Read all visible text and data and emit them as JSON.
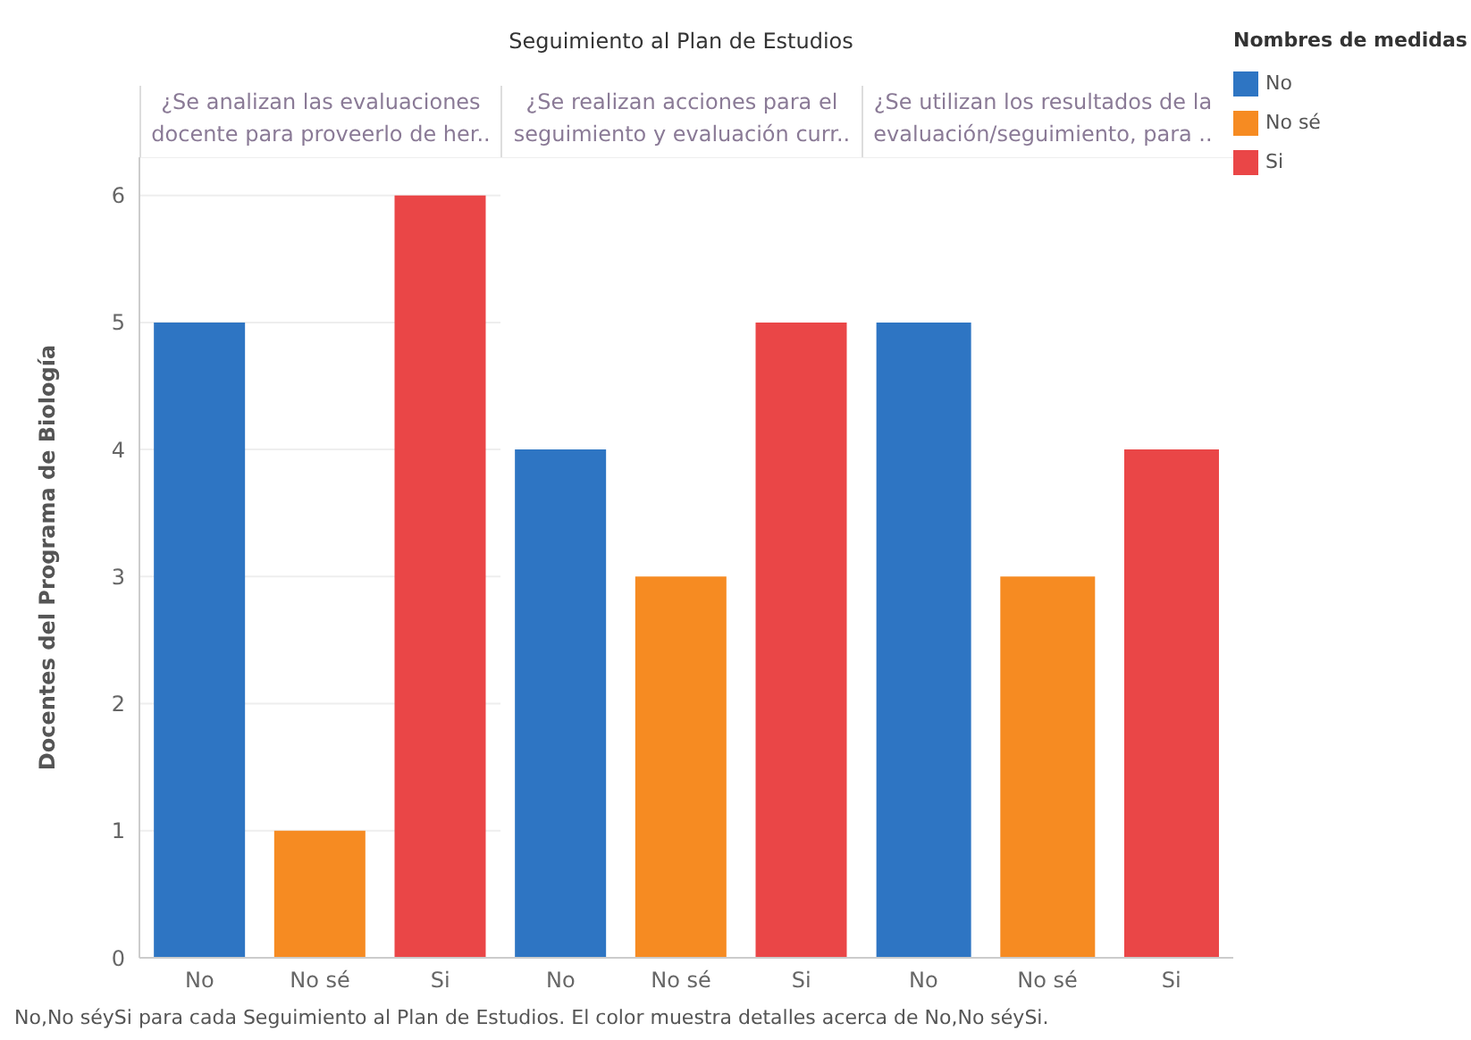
{
  "chart_data": [
    {
      "type": "bar",
      "subtitle": "¿Se analizan las evaluaciones docente para proveerlo de her..",
      "ylabel": "Docentes del Programa de Biología",
      "categories": [
        "No",
        "No sé",
        "Si"
      ],
      "stacked": true,
      "ylim": [
        0,
        6.3
      ],
      "yticks": [
        0,
        1,
        2,
        3,
        4,
        5,
        6
      ],
      "grid": "y",
      "annotations": [
        "No,No séySi para cada Seguimiento al Plan de Estudios. El color muestra detalles acerca de No,No séySi."
      ],
      "series": [
        {
          "color": "#2e75c3",
          "values": [
            5,
            null,
            null
          ]
        },
        {
          "color": "#f68b22",
          "values": [
            null,
            1,
            null
          ]
        },
        {
          "color": "#ea4647",
          "values": [
            null,
            null,
            6
          ]
        }
      ]
    },
    {
      "type": "bar",
      "title": "Seguimiento al Plan de Estudios",
      "subtitle": "¿Se realizan acciones para el seguimiento y evaluación curr..",
      "categories": [
        "No",
        "No sé",
        "Si"
      ],
      "stacked": true,
      "ylim": [
        0,
        6.3
      ],
      "yticks": [
        0,
        1,
        2,
        3,
        4,
        5,
        6
      ],
      "grid": "y",
      "tick_labels": "x",
      "series": [
        {
          "color": "#2e75c3",
          "values": [
            4,
            null,
            null
          ]
        },
        {
          "color": "#f68b22",
          "values": [
            null,
            3,
            null
          ]
        },
        {
          "color": "#ea4647",
          "values": [
            null,
            null,
            5
          ]
        }
      ]
    },
    {
      "type": "bar",
      "subtitle": "¿Se utilizan los resultados de la evaluación/seguimiento, para ..",
      "categories": [
        "No",
        "No sé",
        "Si"
      ],
      "stacked": true,
      "ylim": [
        0,
        6.3
      ],
      "yticks": [
        0,
        1,
        2,
        3,
        4,
        5,
        6
      ],
      "grid": "y",
      "tick_labels": "x",
      "legend": "right",
      "legend_title": "Nombres de medidas",
      "series": [
        {
          "name": "No",
          "color": "#2e75c3",
          "values": [
            5,
            null,
            null
          ]
        },
        {
          "name": "No sé",
          "color": "#f68b22",
          "values": [
            null,
            3,
            null
          ]
        },
        {
          "name": "Si",
          "color": "#ea4647",
          "values": [
            null,
            null,
            4
          ]
        }
      ]
    }
  ]
}
